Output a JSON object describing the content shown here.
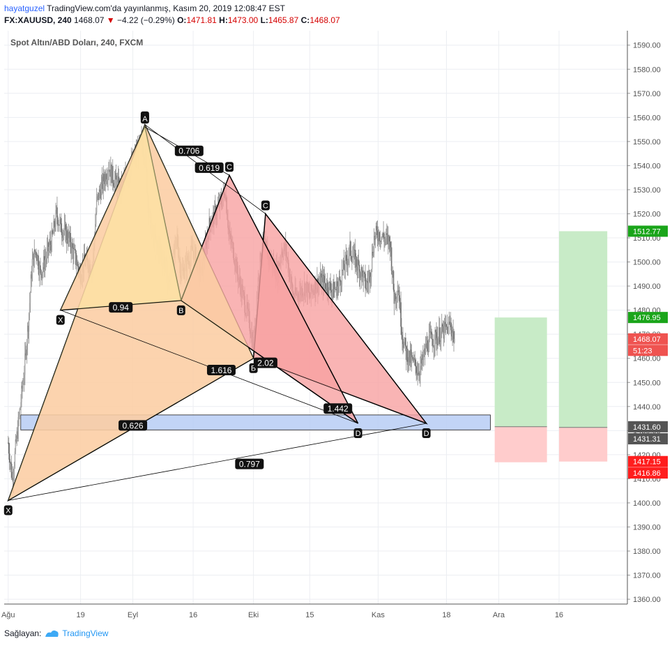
{
  "header": {
    "line1_user": "hayatguzel",
    "line1_text": "TradingView.com'da yayınlanmış, Kasım 20, 2019 12:08:47 EST",
    "line2_symbol": "FX:XAUUSD, 240",
    "line2_price": "1468.07",
    "line2_change": "−4.22 (−0.29%)",
    "open_label": "O:",
    "open": "1471.81",
    "high_label": "H:",
    "high": "1473.00",
    "low_label": "L:",
    "low": "1465.87",
    "close_label": "C:",
    "close": "1468.07"
  },
  "footer": {
    "label": "Sağlayan:",
    "brand": "TradingView"
  },
  "colors": {
    "grid": "#eceef2",
    "candle": "#8a8a8a",
    "yellow_fill": "#fff9a6",
    "red_fill": "#f7a1a1",
    "orange_fill": "#fbab7a",
    "blue_zone": "#b7cdf5",
    "green_zone": "#c8ebc7",
    "pink_zone": "#ffcccc",
    "green_tag": "#1aa51a",
    "red_tag": "#ff1e1e",
    "price_tag": "#ef5350",
    "dark_tag": "#555555"
  },
  "chart_data": {
    "type": "candlestick",
    "title": "Spot Altın/ABD Doları, 240, FXCM",
    "ylim": [
      1358,
      1596
    ],
    "y_ticks": [
      1360,
      1370,
      1380,
      1390,
      1400,
      1410,
      1420,
      1430,
      1440,
      1450,
      1460,
      1470,
      1480,
      1490,
      1500,
      1510,
      1520,
      1530,
      1540,
      1550,
      1560,
      1570,
      1580,
      1590
    ],
    "y_tick_labels": [
      "1360.00",
      "1370.00",
      "1380.00",
      "1390.00",
      "1400.00",
      "1410.00",
      "1420.00",
      "1430.00",
      "1440.00",
      "1450.00",
      "1460.00",
      "1470.00",
      "1480.00",
      "1490.00",
      "1500.00",
      "1510.00",
      "1520.00",
      "1530.00",
      "1540.00",
      "1550.00",
      "1560.00",
      "1570.00",
      "1580.00",
      "1590.00"
    ],
    "x_axis_labels": [
      {
        "date": "2019-08-01",
        "label": "Ağu"
      },
      {
        "date": "2019-08-19",
        "label": "19"
      },
      {
        "date": "2019-09-01",
        "label": "Eyl"
      },
      {
        "date": "2019-09-16",
        "label": "16"
      },
      {
        "date": "2019-10-01",
        "label": "Eki"
      },
      {
        "date": "2019-10-15",
        "label": "15"
      },
      {
        "date": "2019-11-01",
        "label": "Kas"
      },
      {
        "date": "2019-11-18",
        "label": "18"
      },
      {
        "date": "2019-12-01",
        "label": "Ara"
      },
      {
        "date": "2019-12-16",
        "label": "16"
      }
    ],
    "price_path": [
      [
        "2019-08-01",
        1425
      ],
      [
        "2019-08-02",
        1410
      ],
      [
        "2019-08-05",
        1455
      ],
      [
        "2019-08-06",
        1475
      ],
      [
        "2019-08-07",
        1500
      ],
      [
        "2019-08-08",
        1505
      ],
      [
        "2019-08-09",
        1495
      ],
      [
        "2019-08-12",
        1510
      ],
      [
        "2019-08-13",
        1520
      ],
      [
        "2019-08-14",
        1515
      ],
      [
        "2019-08-16",
        1510
      ],
      [
        "2019-08-19",
        1495
      ],
      [
        "2019-08-20",
        1500
      ],
      [
        "2019-08-22",
        1498
      ],
      [
        "2019-08-23",
        1525
      ],
      [
        "2019-08-26",
        1540
      ],
      [
        "2019-08-27",
        1535
      ],
      [
        "2019-08-29",
        1530
      ],
      [
        "2019-09-02",
        1545
      ],
      [
        "2019-09-03",
        1550
      ],
      [
        "2019-09-04",
        1545
      ],
      [
        "2019-09-05",
        1520
      ],
      [
        "2019-09-06",
        1510
      ],
      [
        "2019-09-09",
        1500
      ],
      [
        "2019-09-10",
        1490
      ],
      [
        "2019-09-11",
        1500
      ],
      [
        "2019-09-12",
        1510
      ],
      [
        "2019-09-13",
        1495
      ],
      [
        "2019-09-16",
        1505
      ],
      [
        "2019-09-17",
        1500
      ],
      [
        "2019-09-18",
        1495
      ],
      [
        "2019-09-19",
        1505
      ],
      [
        "2019-09-20",
        1515
      ],
      [
        "2019-09-23",
        1525
      ],
      [
        "2019-09-24",
        1530
      ],
      [
        "2019-09-25",
        1510
      ],
      [
        "2019-09-26",
        1505
      ],
      [
        "2019-09-27",
        1495
      ],
      [
        "2019-09-30",
        1475
      ],
      [
        "2019-10-01",
        1465
      ],
      [
        "2019-10-02",
        1490
      ],
      [
        "2019-10-03",
        1505
      ],
      [
        "2019-10-04",
        1505
      ],
      [
        "2019-10-07",
        1495
      ],
      [
        "2019-10-08",
        1505
      ],
      [
        "2019-10-09",
        1505
      ],
      [
        "2019-10-10",
        1495
      ],
      [
        "2019-10-11",
        1485
      ],
      [
        "2019-10-14",
        1490
      ],
      [
        "2019-10-15",
        1485
      ],
      [
        "2019-10-16",
        1490
      ],
      [
        "2019-10-18",
        1492
      ],
      [
        "2019-10-21",
        1488
      ],
      [
        "2019-10-22",
        1490
      ],
      [
        "2019-10-23",
        1495
      ],
      [
        "2019-10-25",
        1505
      ],
      [
        "2019-10-28",
        1495
      ],
      [
        "2019-10-29",
        1490
      ],
      [
        "2019-10-30",
        1495
      ],
      [
        "2019-10-31",
        1510
      ],
      [
        "2019-11-01",
        1512
      ],
      [
        "2019-11-04",
        1508
      ],
      [
        "2019-11-05",
        1485
      ],
      [
        "2019-11-06",
        1490
      ],
      [
        "2019-11-07",
        1470
      ],
      [
        "2019-11-08",
        1462
      ],
      [
        "2019-11-11",
        1455
      ],
      [
        "2019-11-12",
        1458
      ],
      [
        "2019-11-13",
        1465
      ],
      [
        "2019-11-14",
        1468
      ],
      [
        "2019-11-15",
        1468
      ],
      [
        "2019-11-18",
        1472
      ],
      [
        "2019-11-19",
        1474
      ],
      [
        "2019-11-20",
        1468
      ]
    ],
    "harmonic_patterns": [
      {
        "name": "pattern-1",
        "points": [
          {
            "label": "X",
            "date": "2019-08-01",
            "price": 1401
          },
          {
            "label": "A",
            "date": "2019-09-04",
            "price": 1557
          },
          {
            "label": "B",
            "date": "2019-10-01",
            "price": 1460
          },
          {
            "label": "C",
            "date": "2019-10-04",
            "price": 1520
          },
          {
            "label": "D",
            "date": "2019-11-13",
            "price": 1433
          }
        ],
        "ratios": [
          {
            "value": "0.626",
            "date": "2019-09-01",
            "price": 1432
          },
          {
            "value": "0.706",
            "date": "2019-09-15",
            "price": 1546
          },
          {
            "value": "1.616",
            "date": "2019-09-23",
            "price": 1455
          },
          {
            "value": "0.797",
            "date": "2019-09-30",
            "price": 1416
          }
        ]
      },
      {
        "name": "pattern-2",
        "points": [
          {
            "label": "X",
            "date": "2019-08-14",
            "price": 1480
          },
          {
            "label": "A",
            "date": "2019-09-04",
            "price": 1556
          },
          {
            "label": "B",
            "date": "2019-09-13",
            "price": 1484
          },
          {
            "label": "C",
            "date": "2019-09-25",
            "price": 1536
          },
          {
            "label": "D",
            "date": "2019-10-27",
            "price": 1433
          }
        ],
        "ratios": [
          {
            "value": "0.94",
            "date": "2019-08-29",
            "price": 1481
          },
          {
            "value": "0.619",
            "date": "2019-09-20",
            "price": 1539
          },
          {
            "value": "2.02",
            "date": "2019-10-04",
            "price": 1458
          },
          {
            "value": "1.442",
            "date": "2019-10-22",
            "price": 1439
          }
        ]
      }
    ],
    "zone": {
      "label": "blue-zone",
      "date_from": "2019-08-01",
      "date_to": "2019-12-01",
      "top": 1436.5,
      "bottom": 1430.3
    },
    "positions": [
      {
        "name": "position-1",
        "date_from": "2019-11-30",
        "date_to": "2019-12-13",
        "entry": 1431.6,
        "target": 1476.95,
        "stop": 1416.86
      },
      {
        "name": "position-2",
        "date_from": "2019-12-16",
        "date_to": "2019-12-28",
        "entry": 1431.31,
        "target": 1512.77,
        "stop": 1417.15
      }
    ],
    "price_tags": [
      {
        "value": "1512.77",
        "price": 1512.77,
        "kind": "green"
      },
      {
        "value": "1476.95",
        "price": 1476.95,
        "kind": "green"
      },
      {
        "value": "1468.07",
        "price": 1468.07,
        "kind": "price"
      },
      {
        "value": "51:23",
        "price": 1463.3,
        "kind": "price"
      },
      {
        "value": "1431.60",
        "price": 1431.6,
        "kind": "dark"
      },
      {
        "value": "1431.31",
        "price": 1426.6,
        "kind": "dark"
      },
      {
        "value": "1417.15",
        "price": 1417.15,
        "kind": "red"
      },
      {
        "value": "1416.86",
        "price": 1412.4,
        "kind": "red"
      }
    ]
  }
}
